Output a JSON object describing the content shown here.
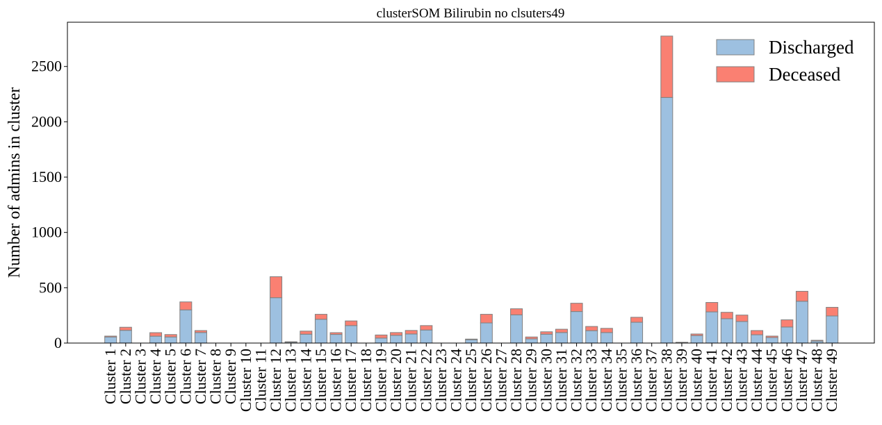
{
  "chart_data": {
    "type": "bar",
    "stacked": true,
    "title": "clusterSOM Bilirubin no clsuters49",
    "xlabel": "",
    "ylabel": "Number of admins in cluster",
    "ylim": [
      0,
      2900
    ],
    "yticks": [
      0,
      500,
      1000,
      1500,
      2000,
      2500
    ],
    "grid": false,
    "legend_position": "top-right",
    "categories": [
      "Cluster 1",
      "Cluster 2",
      "Cluster 3",
      "Cluster 4",
      "Cluster 5",
      "Cluster 6",
      "Cluster 7",
      "Cluster 8",
      "Cluster 9",
      "Cluster 10",
      "Cluster 11",
      "Cluster 12",
      "Cluster 13",
      "Cluster 14",
      "Cluster 15",
      "Cluster 16",
      "Cluster 17",
      "Cluster 18",
      "Cluster 19",
      "Cluster 20",
      "Cluster 21",
      "Cluster 22",
      "Cluster 23",
      "Cluster 24",
      "Cluster 25",
      "Cluster 26",
      "Cluster 27",
      "Cluster 28",
      "Cluster 29",
      "Cluster 30",
      "Cluster 31",
      "Cluster 32",
      "Cluster 33",
      "Cluster 34",
      "Cluster 35",
      "Cluster 36",
      "Cluster 37",
      "Cluster 38",
      "Cluster 39",
      "Cluster 40",
      "Cluster 41",
      "Cluster 42",
      "Cluster 43",
      "Cluster 44",
      "Cluster 45",
      "Cluster 46",
      "Cluster 47",
      "Cluster 48",
      "Cluster 49"
    ],
    "series": [
      {
        "name": "Discharged",
        "color": "#9dc0e0",
        "values": [
          55,
          115,
          0,
          62,
          55,
          300,
          95,
          0,
          0,
          0,
          0,
          410,
          8,
          80,
          215,
          78,
          158,
          0,
          45,
          70,
          82,
          118,
          0,
          0,
          30,
          182,
          0,
          255,
          38,
          80,
          95,
          285,
          112,
          95,
          0,
          188,
          0,
          2220,
          5,
          68,
          282,
          220,
          195,
          75,
          50,
          145,
          378,
          18,
          245
        ]
      },
      {
        "name": "Deceased",
        "color": "#fa8072",
        "values": [
          8,
          28,
          0,
          32,
          22,
          72,
          18,
          0,
          0,
          0,
          0,
          190,
          4,
          28,
          45,
          16,
          42,
          0,
          28,
          25,
          32,
          40,
          0,
          0,
          6,
          78,
          0,
          55,
          17,
          22,
          30,
          75,
          38,
          38,
          0,
          45,
          0,
          555,
          2,
          14,
          85,
          58,
          58,
          38,
          13,
          65,
          90,
          7,
          78
        ]
      }
    ]
  }
}
